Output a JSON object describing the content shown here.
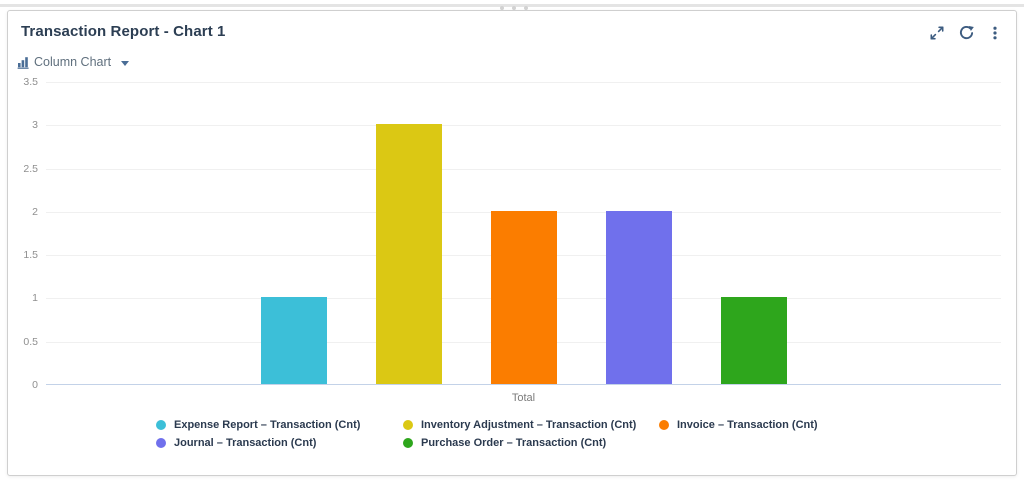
{
  "portlet": {
    "title": "Transaction Report - Chart 1",
    "toolbar": {
      "expand_tooltip": "Expand",
      "refresh_tooltip": "Refresh",
      "menu_tooltip": "Options"
    },
    "chart_type_selector": {
      "label": "Column Chart"
    }
  },
  "colors": {
    "icon": "#3d5c80",
    "selector_icon": "#4a6d96",
    "title_text": "#2c3e53",
    "legend_text": "#2b3a4f",
    "gridline": "#f0f0f0",
    "axis_line": "#c3d2e8"
  },
  "chart_data": {
    "type": "bar",
    "title": "Transaction Report - Chart 1",
    "categories": [
      "Total"
    ],
    "series": [
      {
        "name": "Expense Report – Transaction (Cnt)",
        "color": "#3cbfd8",
        "values": [
          1
        ]
      },
      {
        "name": "Inventory Adjustment – Transaction (Cnt)",
        "color": "#dbc814",
        "values": [
          3
        ]
      },
      {
        "name": "Invoice – Transaction (Cnt)",
        "color": "#fb7d00",
        "values": [
          2
        ]
      },
      {
        "name": "Journal – Transaction (Cnt)",
        "color": "#7070ec",
        "values": [
          2
        ]
      },
      {
        "name": "Purchase Order – Transaction (Cnt)",
        "color": "#2ea61c",
        "values": [
          1
        ]
      }
    ],
    "xlabel": "Total",
    "ylim": [
      0,
      3.5
    ],
    "yticks": [
      0,
      0.5,
      1,
      1.5,
      2,
      2.5,
      3,
      3.5
    ],
    "grid": true,
    "legend_position": "bottom"
  }
}
